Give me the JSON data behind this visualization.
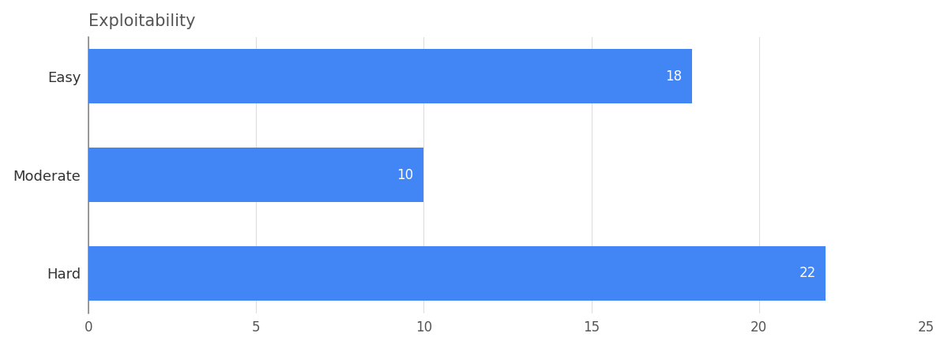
{
  "title": "Exploitability",
  "categories": [
    "Hard",
    "Moderate",
    "Easy"
  ],
  "values": [
    22,
    10,
    18
  ],
  "bar_color": "#4285F4",
  "xlim": [
    0,
    25
  ],
  "xticks": [
    0,
    5,
    10,
    15,
    20,
    25
  ],
  "bar_height": 0.55,
  "label_fontsize": 13,
  "tick_fontsize": 12,
  "title_fontsize": 15,
  "value_label_color": "#ffffff",
  "value_label_fontsize": 12,
  "background_color": "#ffffff",
  "grid_color": "#dddddd"
}
